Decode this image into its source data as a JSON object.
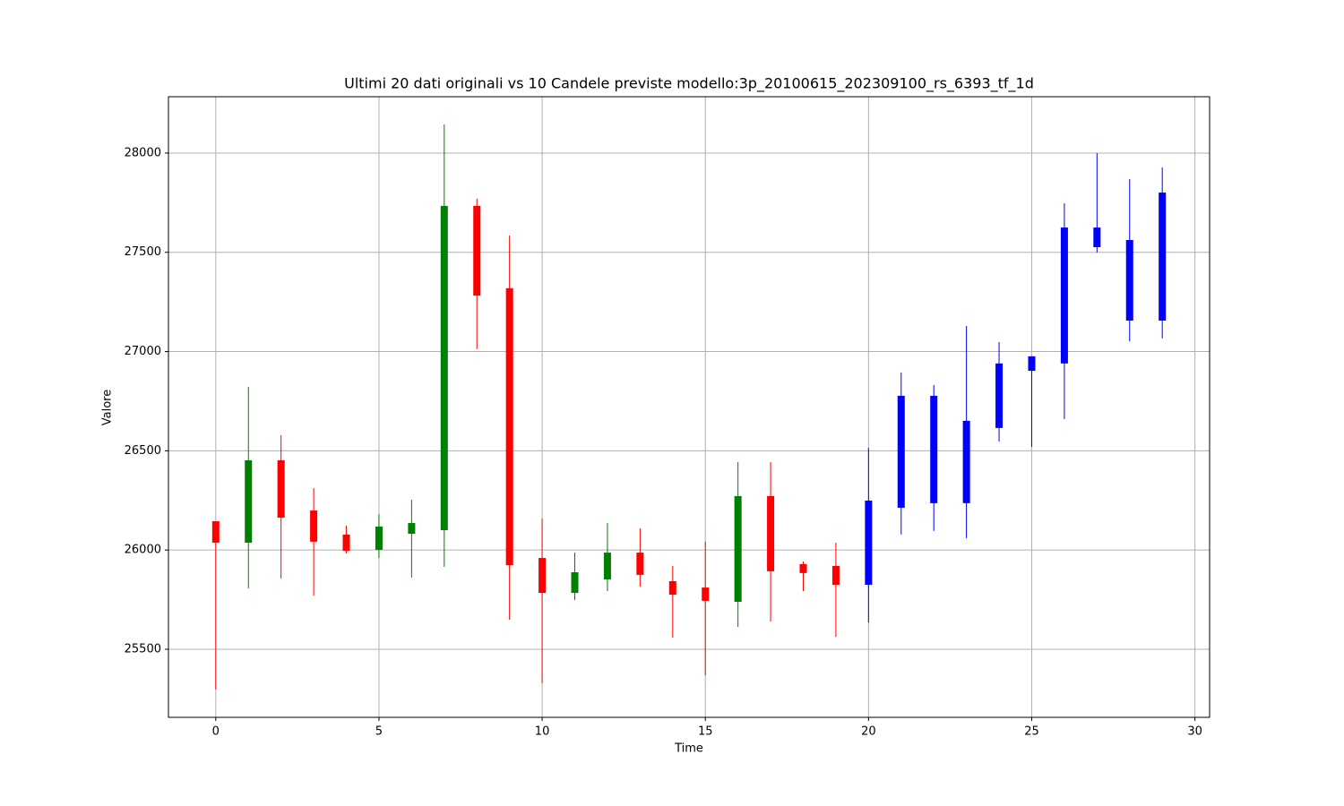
{
  "chart_data": {
    "type": "candlestick",
    "title": "Ultimi 20 dati originali vs 10 Candele previste modello:3p_20100615_202309100_rs_6393_tf_1d",
    "xlabel": "Time",
    "ylabel": "Valore",
    "x": [
      0,
      1,
      2,
      3,
      4,
      5,
      6,
      7,
      8,
      9,
      10,
      11,
      12,
      13,
      14,
      15,
      16,
      17,
      18,
      19,
      20,
      21,
      22,
      23,
      24,
      25,
      26,
      27,
      28,
      29
    ],
    "open": [
      26145,
      26037,
      26452,
      26199,
      26078,
      26001,
      26082,
      26100,
      27734,
      27319,
      25960,
      25784,
      25852,
      25987,
      25843,
      25811,
      25739,
      26272,
      25929,
      25920,
      25825,
      26213,
      26236,
      26236,
      26615,
      26903,
      26940,
      27526,
      27156,
      27156
    ],
    "high": [
      26145,
      26822,
      26579,
      26312,
      26123,
      26181,
      26254,
      28144,
      27770,
      27585,
      26159,
      25987,
      26136,
      26109,
      25920,
      26042,
      26443,
      26443,
      25942,
      26037,
      26515,
      26894,
      26831,
      27129,
      27048,
      26976,
      27747,
      28000,
      27869,
      27928
    ],
    "low": [
      25297,
      25807,
      25856,
      25771,
      25983,
      25960,
      25861,
      25915,
      27012,
      25649,
      25329,
      25748,
      25793,
      25816,
      25559,
      25369,
      25613,
      25640,
      25793,
      25563,
      25635,
      26078,
      26096,
      26060,
      26547,
      26520,
      26660,
      27499,
      27052,
      27066
    ],
    "close": [
      26037,
      26452,
      26163,
      26042,
      25996,
      26118,
      26136,
      27734,
      27282,
      25924,
      25784,
      25888,
      25987,
      25875,
      25775,
      25744,
      26272,
      25893,
      25884,
      25825,
      26249,
      26777,
      26777,
      26651,
      26940,
      26976,
      27625,
      27625,
      27562,
      27801
    ],
    "colors": [
      "red",
      "green",
      "red",
      "red",
      "red",
      "green",
      "green",
      "green",
      "red",
      "red",
      "red",
      "green",
      "green",
      "red",
      "red",
      "red",
      "green",
      "red",
      "red",
      "red",
      "blue",
      "blue",
      "blue",
      "blue",
      "blue",
      "blue",
      "blue",
      "blue",
      "blue",
      "blue"
    ],
    "xlim": [
      -1.45,
      30.45
    ],
    "ylim": [
      25157,
      28284
    ],
    "xticks": [
      0,
      5,
      10,
      15,
      20,
      25,
      30
    ],
    "yticks": [
      25500,
      26000,
      26500,
      27000,
      27500,
      28000
    ],
    "grid": true
  }
}
